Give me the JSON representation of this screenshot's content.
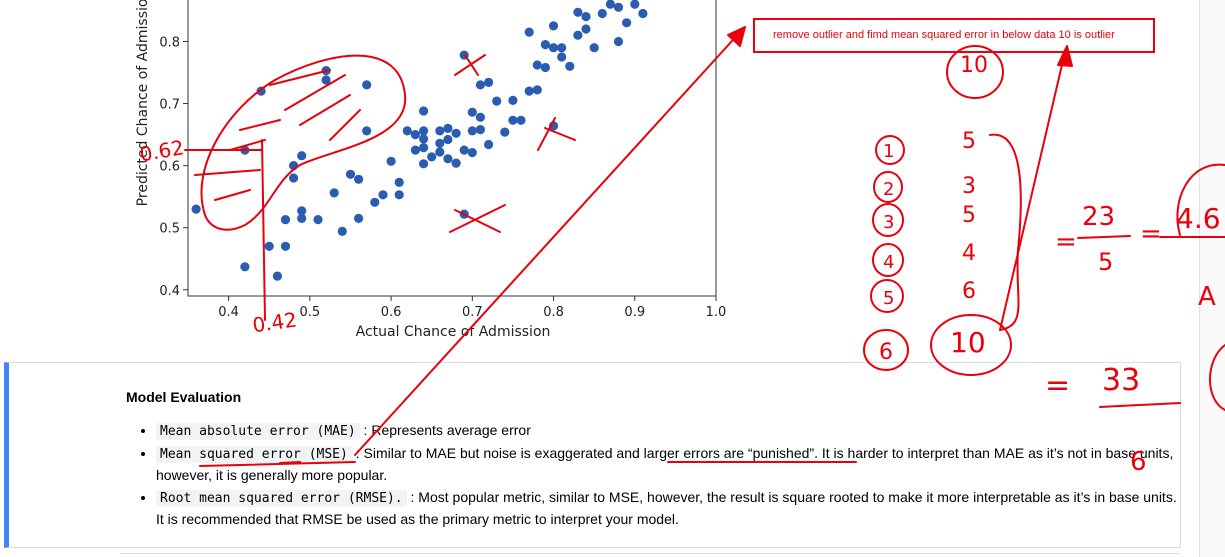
{
  "chart_data": {
    "type": "scatter",
    "xlabel": "Actual Chance of Admission",
    "ylabel": "Predicted Chance of Admission",
    "xlim": [
      0.35,
      1.0
    ],
    "ylim": [
      0.39,
      0.87
    ],
    "xticks": [
      "0.4",
      "0.5",
      "0.6",
      "0.7",
      "0.8",
      "0.9",
      "1.0"
    ],
    "yticks": [
      "0.4",
      "0.5",
      "0.6",
      "0.7",
      "0.8"
    ],
    "color": "#2a5db0",
    "points": [
      [
        0.36,
        0.53
      ],
      [
        0.42,
        0.625
      ],
      [
        0.42,
        0.437
      ],
      [
        0.44,
        0.72
      ],
      [
        0.45,
        0.47
      ],
      [
        0.46,
        0.422
      ],
      [
        0.47,
        0.513
      ],
      [
        0.47,
        0.47
      ],
      [
        0.48,
        0.6
      ],
      [
        0.48,
        0.58
      ],
      [
        0.49,
        0.616
      ],
      [
        0.49,
        0.527
      ],
      [
        0.49,
        0.515
      ],
      [
        0.51,
        0.513
      ],
      [
        0.52,
        0.753
      ],
      [
        0.52,
        0.738
      ],
      [
        0.53,
        0.556
      ],
      [
        0.54,
        0.494
      ],
      [
        0.55,
        0.586
      ],
      [
        0.56,
        0.578
      ],
      [
        0.56,
        0.515
      ],
      [
        0.57,
        0.73
      ],
      [
        0.57,
        0.656
      ],
      [
        0.58,
        0.541
      ],
      [
        0.59,
        0.553
      ],
      [
        0.6,
        0.607
      ],
      [
        0.61,
        0.573
      ],
      [
        0.61,
        0.553
      ],
      [
        0.62,
        0.656
      ],
      [
        0.63,
        0.65
      ],
      [
        0.63,
        0.625
      ],
      [
        0.64,
        0.688
      ],
      [
        0.64,
        0.656
      ],
      [
        0.64,
        0.643
      ],
      [
        0.64,
        0.629
      ],
      [
        0.64,
        0.603
      ],
      [
        0.65,
        0.614
      ],
      [
        0.66,
        0.656
      ],
      [
        0.66,
        0.636
      ],
      [
        0.66,
        0.622
      ],
      [
        0.67,
        0.66
      ],
      [
        0.67,
        0.642
      ],
      [
        0.67,
        0.611
      ],
      [
        0.68,
        0.652
      ],
      [
        0.68,
        0.604
      ],
      [
        0.69,
        0.625
      ],
      [
        0.69,
        0.522
      ],
      [
        0.69,
        0.778
      ],
      [
        0.7,
        0.686
      ],
      [
        0.7,
        0.656
      ],
      [
        0.7,
        0.621
      ],
      [
        0.71,
        0.678
      ],
      [
        0.71,
        0.73
      ],
      [
        0.71,
        0.658
      ],
      [
        0.72,
        0.734
      ],
      [
        0.72,
        0.634
      ],
      [
        0.73,
        0.704
      ],
      [
        0.74,
        0.654
      ],
      [
        0.75,
        0.673
      ],
      [
        0.75,
        0.705
      ],
      [
        0.76,
        0.673
      ],
      [
        0.77,
        0.72
      ],
      [
        0.77,
        0.815
      ],
      [
        0.78,
        0.762
      ],
      [
        0.78,
        0.722
      ],
      [
        0.79,
        0.795
      ],
      [
        0.79,
        0.758
      ],
      [
        0.8,
        0.79
      ],
      [
        0.8,
        0.825
      ],
      [
        0.8,
        0.664
      ],
      [
        0.81,
        0.775
      ],
      [
        0.81,
        0.79
      ],
      [
        0.82,
        0.76
      ],
      [
        0.83,
        0.81
      ],
      [
        0.83,
        0.847
      ],
      [
        0.84,
        0.84
      ],
      [
        0.84,
        0.82
      ],
      [
        0.85,
        0.79
      ],
      [
        0.86,
        0.845
      ],
      [
        0.87,
        0.86
      ],
      [
        0.88,
        0.855
      ],
      [
        0.89,
        0.83
      ],
      [
        0.9,
        0.86
      ],
      [
        0.91,
        0.845
      ],
      [
        0.88,
        0.8
      ]
    ]
  },
  "annotation": {
    "note": "remove outlier and fimd mean squared error in below data 10 is outlier",
    "mark_09_62": "0.62",
    "mark_042": "0.42",
    "circled_10": "10",
    "index_labels": [
      "1",
      "2",
      "3",
      "4",
      "5",
      "6"
    ],
    "values": [
      "5",
      "3",
      "5",
      "4",
      "6",
      "10"
    ],
    "calc1_numerator": "23",
    "calc1_denominator": "5",
    "calc1_result": "4.6",
    "calc2_numerator": "33",
    "calc2_denominator": "6",
    "letter_a": "A",
    "eq": "="
  },
  "evaluation": {
    "title": "Model Evaluation",
    "items": [
      {
        "term": "Mean absolute error (MAE)",
        "text": " : Represents average error"
      },
      {
        "term": "Mean squared error (MSE)",
        "text_before": " : Similar to MAE but noise is exaggerated and ",
        "highlight": "larger errors are “punished”",
        "text_after": ". It is harder to interpret than MAE as it’s not in base units, however, it is generally more popular."
      },
      {
        "term": "Root mean squared error (RMSE).",
        "text": " : Most popular metric, similar to MSE, however, the result is square rooted to make it more interpretable as it’s in base units. It is recommended that RMSE be used as the primary metric to interpret your model."
      }
    ]
  },
  "colors": {
    "ink": "#e8000b",
    "point": "#2a5db0",
    "accent": "#4285f4"
  }
}
